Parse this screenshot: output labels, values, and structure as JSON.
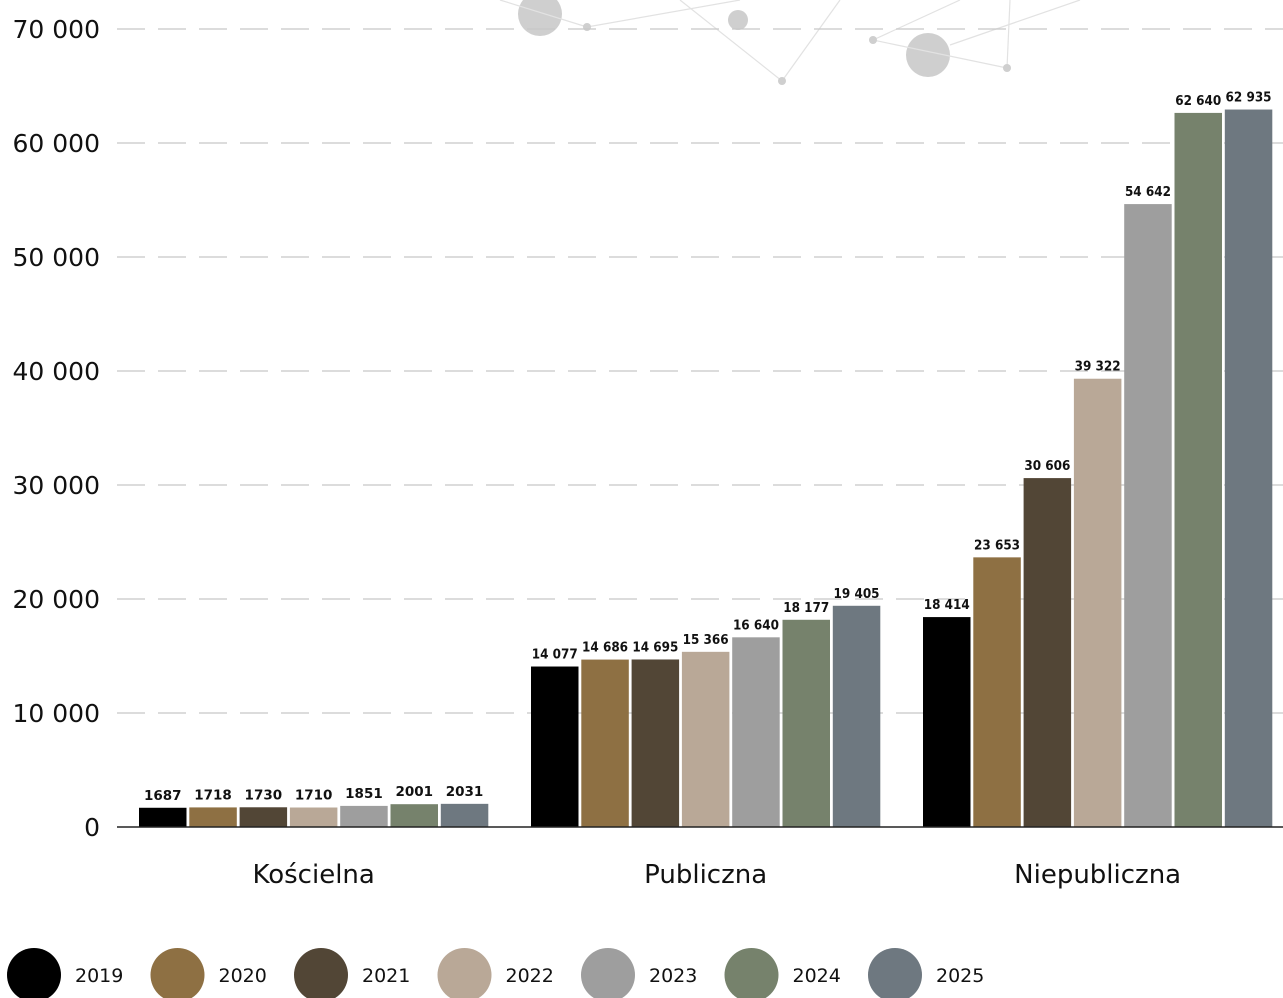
{
  "chart_data": {
    "type": "bar",
    "title": "",
    "xlabel": "",
    "ylabel": "",
    "ylim": [
      0,
      70000
    ],
    "yticks": [
      0,
      10000,
      20000,
      30000,
      40000,
      50000,
      60000,
      70000
    ],
    "ytick_labels": [
      "0",
      "10 000",
      "20 000",
      "30 000",
      "40 000",
      "50 000",
      "60 000",
      "70 000"
    ],
    "grid": "horizontal-dashed",
    "legend_position": "bottom-left",
    "categories": [
      "Kościelna",
      "Publiczna",
      "Niepubliczna"
    ],
    "series": [
      {
        "name": "2019",
        "color": "#000000",
        "values": [
          1687,
          14077,
          18414
        ],
        "labels": [
          "1687",
          "14 077",
          "18 414"
        ]
      },
      {
        "name": "2020",
        "color": "#8e7043",
        "values": [
          1718,
          14686,
          23653
        ],
        "labels": [
          "1718",
          "14 686",
          "23 653"
        ]
      },
      {
        "name": "2021",
        "color": "#524636",
        "values": [
          1730,
          14695,
          30606
        ],
        "labels": [
          "1730",
          "14 695",
          "30 606"
        ]
      },
      {
        "name": "2022",
        "color": "#b9a897",
        "values": [
          1710,
          15366,
          39322
        ],
        "labels": [
          "1710",
          "15 366",
          "39 322"
        ]
      },
      {
        "name": "2023",
        "color": "#9e9e9e",
        "values": [
          1851,
          16640,
          54642
        ],
        "labels": [
          "1851",
          "16 640",
          "54 642"
        ]
      },
      {
        "name": "2024",
        "color": "#76826c",
        "values": [
          2001,
          18177,
          62640
        ],
        "labels": [
          "2001",
          "18 177",
          "62 640"
        ]
      },
      {
        "name": "2025",
        "color": "#6e7880",
        "values": [
          2031,
          19405,
          62935
        ],
        "labels": [
          "2031",
          "19 405",
          "62 935"
        ]
      }
    ]
  }
}
